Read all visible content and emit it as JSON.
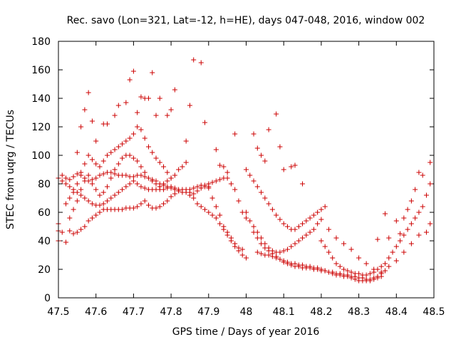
{
  "chart_data": {
    "type": "scatter",
    "title": "Rec. savo (Lon=321, Lat=-12, h=HE), days 047-048, 2016, window 002",
    "xlabel": "GPS time / Days of year 2016",
    "ylabel": "STEC from uqrg / TECUs",
    "xlim": [
      47.5,
      48.5
    ],
    "ylim": [
      0,
      180
    ],
    "xticks": [
      47.5,
      47.6,
      47.7,
      47.8,
      47.9,
      48,
      48.1,
      48.2,
      48.3,
      48.4,
      48.5
    ],
    "xtick_labels": [
      "47.5",
      "47.6",
      "47.7",
      "47.8",
      "47.9",
      "48",
      "48.1",
      "48.2",
      "48.3",
      "48.4",
      "48.5"
    ],
    "yticks": [
      0,
      20,
      40,
      60,
      80,
      100,
      120,
      140,
      160,
      180
    ],
    "ytick_labels": [
      "0",
      "20",
      "40",
      "60",
      "80",
      "100",
      "120",
      "140",
      "160",
      "180"
    ],
    "marker": "+",
    "marker_color": "#cc0000",
    "points": [
      [
        47.5,
        52
      ],
      [
        47.5,
        47
      ],
      [
        47.5,
        40
      ],
      [
        47.51,
        46
      ],
      [
        47.52,
        39
      ],
      [
        47.53,
        47
      ],
      [
        47.54,
        45
      ],
      [
        47.55,
        46
      ],
      [
        47.56,
        48
      ],
      [
        47.57,
        50
      ],
      [
        47.58,
        54
      ],
      [
        47.59,
        56
      ],
      [
        47.6,
        58
      ],
      [
        47.61,
        60
      ],
      [
        47.62,
        62
      ],
      [
        47.63,
        62
      ],
      [
        47.64,
        62
      ],
      [
        47.65,
        62
      ],
      [
        47.66,
        62
      ],
      [
        47.67,
        62
      ],
      [
        47.68,
        63
      ],
      [
        47.69,
        63
      ],
      [
        47.7,
        63
      ],
      [
        47.71,
        64
      ],
      [
        47.72,
        66
      ],
      [
        47.73,
        68
      ],
      [
        47.74,
        65
      ],
      [
        47.75,
        63
      ],
      [
        47.76,
        63
      ],
      [
        47.77,
        64
      ],
      [
        47.78,
        66
      ],
      [
        47.79,
        68
      ],
      [
        47.8,
        71
      ],
      [
        47.81,
        73
      ],
      [
        47.82,
        75
      ],
      [
        47.5,
        84
      ],
      [
        47.51,
        82
      ],
      [
        47.52,
        80
      ],
      [
        47.53,
        78
      ],
      [
        47.54,
        76
      ],
      [
        47.55,
        74
      ],
      [
        47.56,
        72
      ],
      [
        47.57,
        70
      ],
      [
        47.58,
        68
      ],
      [
        47.59,
        66
      ],
      [
        47.6,
        65
      ],
      [
        47.61,
        65
      ],
      [
        47.62,
        66
      ],
      [
        47.63,
        68
      ],
      [
        47.64,
        70
      ],
      [
        47.65,
        72
      ],
      [
        47.66,
        74
      ],
      [
        47.67,
        76
      ],
      [
        47.68,
        78
      ],
      [
        47.69,
        80
      ],
      [
        47.7,
        82
      ],
      [
        47.71,
        80
      ],
      [
        47.72,
        78
      ],
      [
        47.73,
        77
      ],
      [
        47.74,
        76
      ],
      [
        47.75,
        76
      ],
      [
        47.76,
        76
      ],
      [
        47.77,
        76
      ],
      [
        47.78,
        76
      ],
      [
        47.79,
        77
      ],
      [
        47.8,
        77
      ],
      [
        47.81,
        76
      ],
      [
        47.82,
        75
      ],
      [
        47.83,
        74
      ],
      [
        47.84,
        74
      ],
      [
        47.85,
        74
      ],
      [
        47.86,
        73
      ],
      [
        47.87,
        75
      ],
      [
        47.88,
        77
      ],
      [
        47.89,
        79
      ],
      [
        47.9,
        80
      ],
      [
        47.91,
        81
      ],
      [
        47.92,
        82
      ],
      [
        47.93,
        83
      ],
      [
        47.94,
        84
      ],
      [
        47.95,
        84
      ],
      [
        47.51,
        86
      ],
      [
        47.52,
        84
      ],
      [
        47.53,
        83
      ],
      [
        47.54,
        85
      ],
      [
        47.55,
        87
      ],
      [
        47.56,
        86
      ],
      [
        47.57,
        84
      ],
      [
        47.58,
        82
      ],
      [
        47.59,
        83
      ],
      [
        47.6,
        84
      ],
      [
        47.61,
        86
      ],
      [
        47.62,
        87
      ],
      [
        47.63,
        88
      ],
      [
        47.64,
        88
      ],
      [
        47.65,
        87
      ],
      [
        47.66,
        86
      ],
      [
        47.67,
        86
      ],
      [
        47.68,
        86
      ],
      [
        47.69,
        85
      ],
      [
        47.7,
        85
      ],
      [
        47.71,
        86
      ],
      [
        47.72,
        86
      ],
      [
        47.73,
        85
      ],
      [
        47.74,
        84
      ],
      [
        47.75,
        83
      ],
      [
        47.76,
        82
      ],
      [
        47.77,
        80
      ],
      [
        47.78,
        79
      ],
      [
        47.79,
        78
      ],
      [
        47.8,
        78
      ],
      [
        47.81,
        77
      ],
      [
        47.82,
        76
      ],
      [
        47.83,
        76
      ],
      [
        47.84,
        76
      ],
      [
        47.85,
        76
      ],
      [
        47.86,
        77
      ],
      [
        47.87,
        78
      ],
      [
        47.88,
        79
      ],
      [
        47.89,
        78
      ],
      [
        47.9,
        77
      ],
      [
        47.52,
        66
      ],
      [
        47.53,
        70
      ],
      [
        47.54,
        74
      ],
      [
        47.55,
        80
      ],
      [
        47.56,
        88
      ],
      [
        47.57,
        94
      ],
      [
        47.58,
        100
      ],
      [
        47.59,
        97
      ],
      [
        47.6,
        94
      ],
      [
        47.61,
        92
      ],
      [
        47.62,
        96
      ],
      [
        47.63,
        100
      ],
      [
        47.64,
        102
      ],
      [
        47.65,
        104
      ],
      [
        47.66,
        106
      ],
      [
        47.67,
        108
      ],
      [
        47.68,
        110
      ],
      [
        47.69,
        112
      ],
      [
        47.7,
        115
      ],
      [
        47.71,
        120
      ],
      [
        47.72,
        118
      ],
      [
        47.73,
        112
      ],
      [
        47.74,
        106
      ],
      [
        47.75,
        102
      ],
      [
        47.76,
        98
      ],
      [
        47.77,
        95
      ],
      [
        47.78,
        92
      ],
      [
        47.79,
        88
      ],
      [
        47.8,
        84
      ],
      [
        47.55,
        102
      ],
      [
        47.56,
        120
      ],
      [
        47.57,
        132
      ],
      [
        47.58,
        144
      ],
      [
        47.59,
        124
      ],
      [
        47.6,
        110
      ],
      [
        47.62,
        122
      ],
      [
        47.63,
        122
      ],
      [
        47.65,
        128
      ],
      [
        47.66,
        135
      ],
      [
        47.68,
        137
      ],
      [
        47.69,
        153
      ],
      [
        47.7,
        159
      ],
      [
        47.71,
        130
      ],
      [
        47.72,
        141
      ],
      [
        47.73,
        140
      ],
      [
        47.74,
        140
      ],
      [
        47.75,
        158
      ],
      [
        47.76,
        128
      ],
      [
        47.77,
        140
      ],
      [
        47.79,
        128
      ],
      [
        47.8,
        132
      ],
      [
        47.81,
        146
      ],
      [
        47.84,
        110
      ],
      [
        47.85,
        135
      ],
      [
        47.86,
        167
      ],
      [
        47.88,
        165
      ],
      [
        47.89,
        123
      ],
      [
        47.53,
        56
      ],
      [
        47.54,
        62
      ],
      [
        47.55,
        68
      ],
      [
        47.56,
        76
      ],
      [
        47.57,
        82
      ],
      [
        47.58,
        86
      ],
      [
        47.59,
        80
      ],
      [
        47.6,
        76
      ],
      [
        47.61,
        72
      ],
      [
        47.62,
        74
      ],
      [
        47.63,
        78
      ],
      [
        47.64,
        84
      ],
      [
        47.65,
        90
      ],
      [
        47.66,
        94
      ],
      [
        47.67,
        98
      ],
      [
        47.68,
        100
      ],
      [
        47.69,
        100
      ],
      [
        47.7,
        98
      ],
      [
        47.71,
        96
      ],
      [
        47.72,
        92
      ],
      [
        47.73,
        88
      ],
      [
        47.74,
        84
      ],
      [
        47.75,
        82
      ],
      [
        47.76,
        80
      ],
      [
        47.77,
        78
      ],
      [
        47.78,
        80
      ],
      [
        47.79,
        82
      ],
      [
        47.8,
        84
      ],
      [
        47.81,
        86
      ],
      [
        47.82,
        90
      ],
      [
        47.83,
        92
      ],
      [
        47.84,
        95
      ],
      [
        47.85,
        72
      ],
      [
        47.86,
        70
      ],
      [
        47.87,
        66
      ],
      [
        47.88,
        64
      ],
      [
        47.89,
        62
      ],
      [
        47.9,
        60
      ],
      [
        47.91,
        58
      ],
      [
        47.92,
        56
      ],
      [
        47.93,
        52
      ],
      [
        47.94,
        48
      ],
      [
        47.95,
        44
      ],
      [
        47.96,
        40
      ],
      [
        47.97,
        36
      ],
      [
        47.98,
        33
      ],
      [
        47.99,
        30
      ],
      [
        48.0,
        28
      ],
      [
        47.9,
        78
      ],
      [
        47.91,
        70
      ],
      [
        47.92,
        64
      ],
      [
        47.93,
        58
      ],
      [
        47.94,
        50
      ],
      [
        47.95,
        46
      ],
      [
        47.96,
        42
      ],
      [
        47.97,
        38
      ],
      [
        47.98,
        35
      ],
      [
        47.99,
        34
      ],
      [
        47.92,
        104
      ],
      [
        47.93,
        93
      ],
      [
        47.94,
        92
      ],
      [
        47.95,
        88
      ],
      [
        47.96,
        80
      ],
      [
        47.97,
        76
      ],
      [
        47.98,
        68
      ],
      [
        47.99,
        60
      ],
      [
        48.0,
        56
      ],
      [
        47.97,
        115
      ],
      [
        48.02,
        115
      ],
      [
        48.03,
        105
      ],
      [
        48.04,
        100
      ],
      [
        48.05,
        96
      ],
      [
        48.06,
        118
      ],
      [
        48.08,
        129
      ],
      [
        48.09,
        106
      ],
      [
        48.1,
        90
      ],
      [
        48.12,
        92
      ],
      [
        48.13,
        93
      ],
      [
        48.15,
        80
      ],
      [
        48.0,
        60
      ],
      [
        48.01,
        54
      ],
      [
        48.02,
        50
      ],
      [
        48.03,
        46
      ],
      [
        48.04,
        42
      ],
      [
        48.05,
        38
      ],
      [
        48.06,
        35
      ],
      [
        48.07,
        33
      ],
      [
        48.08,
        32
      ],
      [
        48.09,
        32
      ],
      [
        48.1,
        33
      ],
      [
        48.11,
        34
      ],
      [
        48.12,
        36
      ],
      [
        48.13,
        38
      ],
      [
        48.14,
        40
      ],
      [
        48.15,
        42
      ],
      [
        48.16,
        44
      ],
      [
        48.17,
        46
      ],
      [
        48.18,
        48
      ],
      [
        48.19,
        52
      ],
      [
        48.2,
        55
      ],
      [
        48.0,
        90
      ],
      [
        48.01,
        86
      ],
      [
        48.02,
        82
      ],
      [
        48.03,
        78
      ],
      [
        48.04,
        74
      ],
      [
        48.05,
        70
      ],
      [
        48.06,
        66
      ],
      [
        48.07,
        62
      ],
      [
        48.08,
        58
      ],
      [
        48.09,
        55
      ],
      [
        48.1,
        52
      ],
      [
        48.11,
        50
      ],
      [
        48.12,
        48
      ],
      [
        48.13,
        48
      ],
      [
        48.14,
        50
      ],
      [
        48.15,
        52
      ],
      [
        48.16,
        54
      ],
      [
        48.17,
        56
      ],
      [
        48.18,
        58
      ],
      [
        48.19,
        60
      ],
      [
        48.2,
        62
      ],
      [
        48.21,
        64
      ],
      [
        48.02,
        46
      ],
      [
        48.03,
        42
      ],
      [
        48.04,
        38
      ],
      [
        48.05,
        35
      ],
      [
        48.06,
        33
      ],
      [
        48.07,
        31
      ],
      [
        48.08,
        29
      ],
      [
        48.09,
        27
      ],
      [
        48.1,
        25
      ],
      [
        48.11,
        24
      ],
      [
        48.12,
        23
      ],
      [
        48.13,
        22
      ],
      [
        48.14,
        22
      ],
      [
        48.15,
        21
      ],
      [
        48.16,
        21
      ],
      [
        48.17,
        21
      ],
      [
        48.18,
        20
      ],
      [
        48.19,
        20
      ],
      [
        48.2,
        19
      ],
      [
        48.21,
        19
      ],
      [
        48.22,
        18
      ],
      [
        48.23,
        18
      ],
      [
        48.24,
        17
      ],
      [
        48.25,
        17
      ],
      [
        48.26,
        16
      ],
      [
        48.27,
        16
      ],
      [
        48.28,
        15
      ],
      [
        48.29,
        15
      ],
      [
        48.3,
        14
      ],
      [
        48.31,
        14
      ],
      [
        48.32,
        13
      ],
      [
        48.33,
        13
      ],
      [
        48.34,
        14
      ],
      [
        48.35,
        15
      ],
      [
        48.36,
        17
      ],
      [
        48.37,
        19
      ],
      [
        48.03,
        32
      ],
      [
        48.04,
        31
      ],
      [
        48.05,
        30
      ],
      [
        48.06,
        30
      ],
      [
        48.07,
        29
      ],
      [
        48.08,
        28
      ],
      [
        48.09,
        27
      ],
      [
        48.1,
        26
      ],
      [
        48.11,
        25
      ],
      [
        48.12,
        24
      ],
      [
        48.13,
        24
      ],
      [
        48.14,
        23
      ],
      [
        48.15,
        23
      ],
      [
        48.16,
        22
      ],
      [
        48.17,
        22
      ],
      [
        48.18,
        21
      ],
      [
        48.19,
        21
      ],
      [
        48.2,
        20
      ],
      [
        48.21,
        19
      ],
      [
        48.22,
        18
      ],
      [
        48.23,
        17
      ],
      [
        48.24,
        16
      ],
      [
        48.25,
        16
      ],
      [
        48.26,
        15
      ],
      [
        48.27,
        15
      ],
      [
        48.28,
        14
      ],
      [
        48.29,
        13
      ],
      [
        48.3,
        12
      ],
      [
        48.31,
        12
      ],
      [
        48.32,
        12
      ],
      [
        48.33,
        12
      ],
      [
        48.34,
        13
      ],
      [
        48.35,
        14
      ],
      [
        48.36,
        15
      ],
      [
        48.2,
        40
      ],
      [
        48.21,
        36
      ],
      [
        48.22,
        32
      ],
      [
        48.23,
        28
      ],
      [
        48.24,
        24
      ],
      [
        48.25,
        22
      ],
      [
        48.26,
        20
      ],
      [
        48.27,
        19
      ],
      [
        48.28,
        18
      ],
      [
        48.29,
        17
      ],
      [
        48.3,
        17
      ],
      [
        48.31,
        16
      ],
      [
        48.32,
        16
      ],
      [
        48.33,
        17
      ],
      [
        48.34,
        18
      ],
      [
        48.35,
        20
      ],
      [
        48.36,
        22
      ],
      [
        48.37,
        24
      ],
      [
        48.38,
        28
      ],
      [
        48.39,
        32
      ],
      [
        48.4,
        36
      ],
      [
        48.41,
        40
      ],
      [
        48.42,
        44
      ],
      [
        48.43,
        48
      ],
      [
        48.44,
        52
      ],
      [
        48.45,
        56
      ],
      [
        48.46,
        60
      ],
      [
        48.47,
        64
      ],
      [
        48.48,
        72
      ],
      [
        48.49,
        80
      ],
      [
        48.22,
        48
      ],
      [
        48.24,
        42
      ],
      [
        48.26,
        38
      ],
      [
        48.28,
        34
      ],
      [
        48.3,
        28
      ],
      [
        48.32,
        24
      ],
      [
        48.34,
        20
      ],
      [
        48.36,
        18
      ],
      [
        48.38,
        22
      ],
      [
        48.4,
        26
      ],
      [
        48.42,
        32
      ],
      [
        48.44,
        38
      ],
      [
        48.46,
        44
      ],
      [
        48.48,
        46
      ],
      [
        48.49,
        52
      ],
      [
        48.35,
        41
      ],
      [
        48.37,
        59
      ],
      [
        48.38,
        42
      ],
      [
        48.4,
        54
      ],
      [
        48.41,
        45
      ],
      [
        48.42,
        56
      ],
      [
        48.43,
        62
      ],
      [
        48.44,
        68
      ],
      [
        48.45,
        76
      ],
      [
        48.46,
        88
      ],
      [
        48.47,
        86
      ],
      [
        48.49,
        95
      ]
    ]
  }
}
